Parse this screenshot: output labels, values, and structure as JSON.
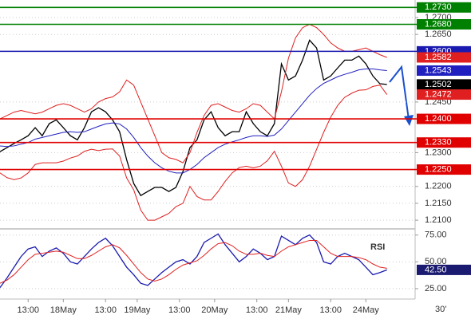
{
  "chart_data": [
    {
      "type": "line",
      "xlim": [
        0,
        59
      ],
      "ylim": [
        1.2079,
        1.2752
      ],
      "yticks": [
        {
          "value": 1.21,
          "label": "1.2100"
        },
        {
          "value": 1.215,
          "label": "1.2150"
        },
        {
          "value": 1.22,
          "label": "1.2200"
        },
        {
          "value": 1.23,
          "label": "1.2300"
        },
        {
          "value": 1.245,
          "label": "1.2450"
        },
        {
          "value": 1.265,
          "label": "1.2650"
        },
        {
          "value": 1.27,
          "label": "1.2700"
        }
      ],
      "grid": true,
      "series": [
        {
          "color": "#000000",
          "values": [
            1.2303,
            1.2315,
            1.2327,
            1.2338,
            1.235,
            1.2374,
            1.235,
            1.2386,
            1.2397,
            1.2374,
            1.235,
            1.2338,
            1.2374,
            1.2421,
            1.2433,
            1.2421,
            1.2397,
            1.2362,
            1.2279,
            1.2209,
            1.2173,
            1.2185,
            1.2197,
            1.2197,
            1.2185,
            1.2197,
            1.2244,
            1.2315,
            1.2338,
            1.2397,
            1.2421,
            1.2374,
            1.235,
            1.2362,
            1.2362,
            1.2421,
            1.2386,
            1.2362,
            1.235,
            1.2386,
            1.2563,
            1.2515,
            1.2527,
            1.2574,
            1.2633,
            1.261,
            1.2515,
            1.2527,
            1.2551,
            1.2574,
            1.2574,
            1.2586,
            1.2563,
            1.2527,
            1.2504,
            1.2502
          ]
        },
        {
          "color": "#2020c0",
          "values": [
            1.232,
            1.2318,
            1.232,
            1.2325,
            1.233,
            1.234,
            1.2345,
            1.235,
            1.2355,
            1.236,
            1.2362,
            1.236,
            1.2362,
            1.237,
            1.2378,
            1.2385,
            1.2388,
            1.2385,
            1.237,
            1.2345,
            1.2315,
            1.229,
            1.227,
            1.2255,
            1.2245,
            1.224,
            1.224,
            1.225,
            1.2265,
            1.2285,
            1.23,
            1.2315,
            1.2325,
            1.2332,
            1.2338,
            1.2345,
            1.235,
            1.235,
            1.2348,
            1.2352,
            1.237,
            1.2395,
            1.242,
            1.2445,
            1.247,
            1.249,
            1.2505,
            1.2515,
            1.2525,
            1.2532,
            1.2538,
            1.2545,
            1.2548,
            1.2548,
            1.2545,
            1.2543
          ]
        },
        {
          "color": "#e02020",
          "values": [
            1.24,
            1.241,
            1.242,
            1.2425,
            1.242,
            1.2415,
            1.242,
            1.243,
            1.244,
            1.2445,
            1.244,
            1.243,
            1.242,
            1.243,
            1.245,
            1.246,
            1.2465,
            1.248,
            1.2515,
            1.25,
            1.245,
            1.24,
            1.235,
            1.23,
            1.2285,
            1.228,
            1.227,
            1.23,
            1.236,
            1.241,
            1.244,
            1.2445,
            1.2435,
            1.2425,
            1.242,
            1.243,
            1.2445,
            1.244,
            1.242,
            1.24,
            1.248,
            1.258,
            1.264,
            1.267,
            1.268,
            1.267,
            1.265,
            1.2625,
            1.261,
            1.26,
            1.26,
            1.2605,
            1.261,
            1.26,
            1.259,
            1.2582
          ]
        },
        {
          "color": "#e02020",
          "values": [
            1.224,
            1.2226,
            1.222,
            1.2225,
            1.224,
            1.2265,
            1.227,
            1.227,
            1.227,
            1.2275,
            1.2284,
            1.229,
            1.2304,
            1.231,
            1.2306,
            1.231,
            1.2311,
            1.229,
            1.2225,
            1.219,
            1.213,
            1.21,
            1.21,
            1.211,
            1.212,
            1.214,
            1.215,
            1.22,
            1.217,
            1.216,
            1.216,
            1.2185,
            1.2215,
            1.224,
            1.2256,
            1.226,
            1.2255,
            1.226,
            1.2276,
            1.2304,
            1.226,
            1.221,
            1.22,
            1.222,
            1.226,
            1.231,
            1.236,
            1.2405,
            1.244,
            1.2464,
            1.2476,
            1.2485,
            1.2486,
            1.2496,
            1.25,
            1.2472
          ]
        }
      ],
      "levels": [
        {
          "value": 1.273,
          "label": "1.2730",
          "color": "#008000"
        },
        {
          "value": 1.268,
          "label": "1.2680",
          "color": "#008000"
        },
        {
          "value": 1.26,
          "label": "1.2600",
          "color": "#1a1ab0"
        },
        {
          "value": 1.24,
          "label": "1.2400",
          "color": "#e00000"
        },
        {
          "value": 1.233,
          "label": "1.2330",
          "color": "#e00000"
        },
        {
          "value": 1.225,
          "label": "1.2250",
          "color": "#e00000"
        }
      ],
      "markers": [
        {
          "value": 1.2582,
          "label": "1.2582",
          "color": "#e02020"
        },
        {
          "value": 1.2543,
          "label": "1.2543",
          "color": "#2020c0"
        },
        {
          "value": 1.2502,
          "label": "1.2502",
          "color": "#000000"
        },
        {
          "value": 1.2472,
          "label": "1.2472",
          "color": "#e02020"
        }
      ]
    },
    {
      "type": "line",
      "title": "RSI",
      "xlim": [
        0,
        59
      ],
      "xticks": [
        {
          "value": 4,
          "label": "13:00"
        },
        {
          "value": 9,
          "label": "18May"
        },
        {
          "value": 15,
          "label": "13:00"
        },
        {
          "value": 19.5,
          "label": "19May"
        },
        {
          "value": 25.5,
          "label": "13:00"
        },
        {
          "value": 30.5,
          "label": "20May"
        },
        {
          "value": 36.5,
          "label": "13:00"
        },
        {
          "value": 41,
          "label": "21May"
        },
        {
          "value": 47,
          "label": "13:00"
        },
        {
          "value": 52,
          "label": "24May"
        }
      ],
      "timeframe": "30'",
      "ylim": [
        17.5,
        80
      ],
      "yticks": [
        {
          "value": 25,
          "label": "25.00"
        },
        {
          "value": 50,
          "label": "50.00"
        },
        {
          "value": 75,
          "label": "75.00"
        }
      ],
      "grid": true,
      "series": [
        {
          "color": "#1a1ab0",
          "values": [
            26,
            35,
            45,
            55,
            62,
            64,
            55,
            60,
            63,
            58,
            50,
            48,
            55,
            62,
            68,
            72,
            65,
            55,
            45,
            38,
            30,
            28,
            34,
            40,
            45,
            50,
            52,
            48,
            55,
            68,
            72,
            76,
            66,
            58,
            50,
            55,
            62,
            58,
            52,
            55,
            74,
            70,
            66,
            72,
            75,
            68,
            50,
            48,
            55,
            58,
            55,
            52,
            45,
            38,
            40,
            42.5
          ]
        },
        {
          "color": "#e02020",
          "values": [
            30,
            33,
            38,
            45,
            52,
            57,
            58,
            59,
            60,
            59,
            56,
            53,
            53,
            56,
            60,
            64,
            66,
            63,
            56,
            48,
            40,
            34,
            32,
            34,
            38,
            43,
            47,
            49,
            51,
            56,
            62,
            67,
            68,
            65,
            60,
            57,
            57,
            58,
            56,
            55,
            60,
            64,
            66,
            68,
            70,
            70,
            64,
            58,
            55,
            55,
            55,
            54,
            52,
            48,
            45,
            44
          ]
        }
      ],
      "markers": [
        {
          "value": 42.5,
          "label": "42.50",
          "color": "#1a1a70"
        }
      ]
    }
  ]
}
